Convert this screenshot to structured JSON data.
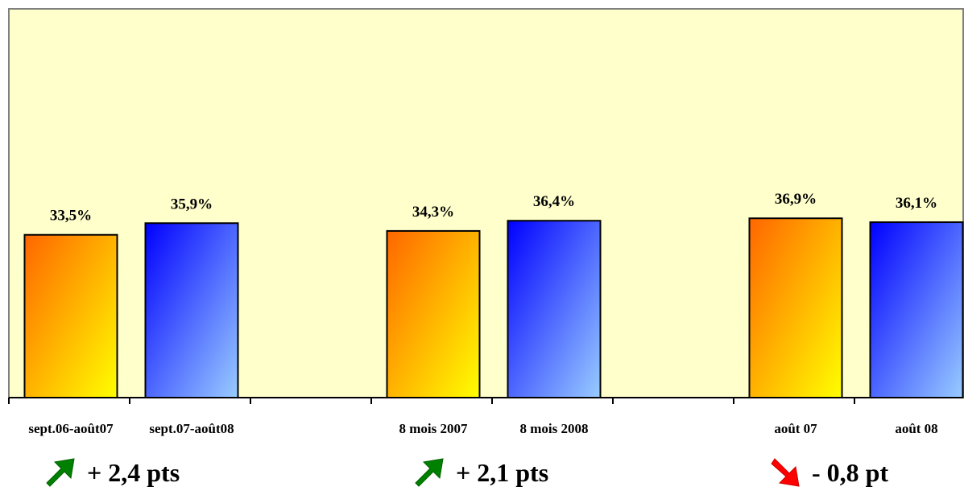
{
  "chart_data": {
    "type": "bar",
    "categories": [
      "sept.06-août07",
      "sept.07-août08",
      "8 mois 2007",
      "8 mois 2008",
      "août 07",
      "août 08"
    ],
    "values": [
      33.5,
      35.9,
      34.3,
      36.4,
      36.9,
      36.1
    ],
    "value_labels": [
      "33,5%",
      "35,9%",
      "34,3%",
      "36,4%",
      "36,9%",
      "36,1%"
    ],
    "groups": [
      {
        "categories": [
          "sept.06-août07",
          "sept.07-août08"
        ]
      },
      {
        "categories": [
          "8 mois 2007",
          "8 mois 2008"
        ]
      },
      {
        "categories": [
          "août 07",
          "août 08"
        ]
      }
    ],
    "ylim": [
      0,
      80
    ],
    "grid": false,
    "title": "",
    "xlabel": "",
    "ylabel": "",
    "colors": {
      "plot_background": "#FFFFCC",
      "plot_border": "#808080",
      "orange_top": "#FF6600",
      "orange_bottom": "#FFFF00",
      "blue_top": "#0000FF",
      "blue_bottom": "#99CCFF"
    }
  },
  "changes": [
    {
      "text": "+ 2,4 pts",
      "direction": "up",
      "icon": "up-right-arrow-icon",
      "color": "#008000"
    },
    {
      "text": "+ 2,1 pts",
      "direction": "up",
      "icon": "up-right-arrow-icon",
      "color": "#008000"
    },
    {
      "text": "- 0,8 pt",
      "direction": "down",
      "icon": "down-right-arrow-icon",
      "color": "#FF0000"
    }
  ]
}
